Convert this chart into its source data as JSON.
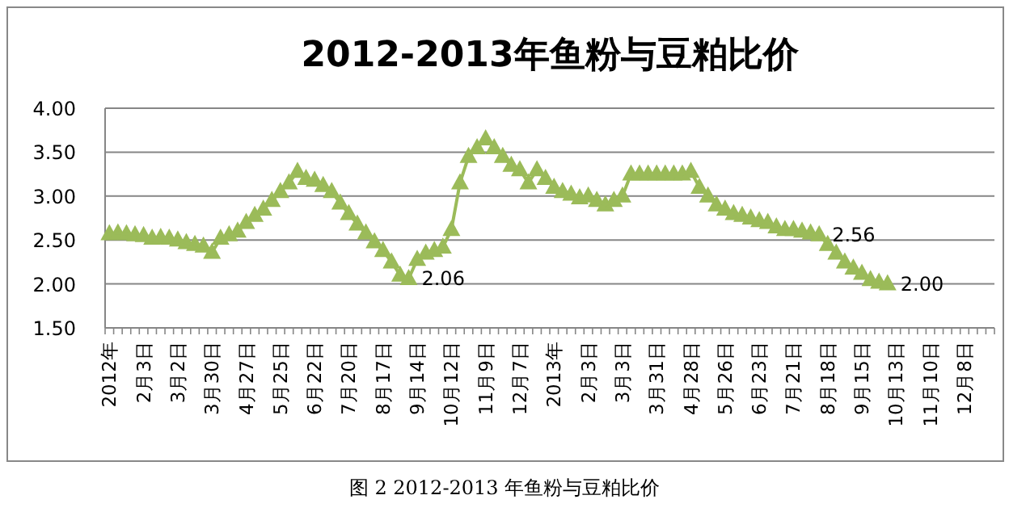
{
  "chart_data": {
    "type": "line",
    "title": "2012-2013年鱼粉与豆粕比价",
    "categories": [
      "2012年",
      null,
      null,
      null,
      "2月3日",
      null,
      null,
      null,
      "3月2日",
      null,
      null,
      null,
      "3月30日",
      null,
      null,
      null,
      "4月27日",
      null,
      null,
      null,
      "5月25日",
      null,
      null,
      null,
      "6月22日",
      null,
      null,
      null,
      "7月20日",
      null,
      null,
      null,
      "8月17日",
      null,
      null,
      null,
      "9月14日",
      null,
      null,
      null,
      "10月12日",
      null,
      null,
      null,
      "11月9日",
      null,
      null,
      null,
      "12月7日",
      null,
      null,
      null,
      "2013年",
      null,
      null,
      null,
      "2月3日",
      null,
      null,
      null,
      "3月3日",
      null,
      null,
      null,
      "3月31日",
      null,
      null,
      null,
      "4月28日",
      null,
      null,
      null,
      "5月26日",
      null,
      null,
      null,
      "6月23日",
      null,
      null,
      null,
      "7月21日",
      null,
      null,
      null,
      "8月18日",
      null,
      null,
      null,
      "9月15日",
      null,
      null,
      null,
      "10月13日",
      null,
      null,
      null,
      "11月10日",
      null,
      null,
      null,
      "12月8日",
      null,
      null,
      null
    ],
    "series": [
      {
        "color": "#9bbb59",
        "values": [
          2.57,
          2.58,
          2.57,
          2.56,
          2.55,
          2.52,
          2.53,
          2.52,
          2.5,
          2.47,
          2.45,
          2.43,
          2.36,
          2.52,
          2.56,
          2.6,
          2.7,
          2.78,
          2.85,
          2.95,
          3.05,
          3.15,
          3.28,
          3.2,
          3.18,
          3.12,
          3.05,
          2.92,
          2.8,
          2.68,
          2.58,
          2.48,
          2.38,
          2.25,
          2.1,
          2.06,
          2.28,
          2.35,
          2.38,
          2.42,
          2.62,
          3.15,
          3.45,
          3.55,
          3.65,
          3.55,
          3.45,
          3.35,
          3.3,
          3.15,
          3.3,
          3.2,
          3.1,
          3.05,
          3.02,
          2.98,
          3.0,
          2.95,
          2.9,
          2.95,
          3.0,
          3.25,
          3.25,
          3.25,
          3.25,
          3.25,
          3.25,
          3.25,
          3.28,
          3.1,
          3.0,
          2.9,
          2.85,
          2.8,
          2.78,
          2.75,
          2.72,
          2.7,
          2.65,
          2.62,
          2.62,
          2.6,
          2.58,
          2.56,
          2.45,
          2.35,
          2.25,
          2.18,
          2.12,
          2.05,
          2.02,
          2.0,
          null,
          null,
          null,
          null,
          null,
          null,
          null,
          null,
          null,
          null,
          null,
          null
        ],
        "value_labels": [
          null,
          null,
          null,
          null,
          null,
          null,
          null,
          null,
          null,
          null,
          null,
          null,
          null,
          null,
          null,
          null,
          null,
          null,
          null,
          null,
          null,
          null,
          null,
          null,
          null,
          null,
          null,
          null,
          null,
          null,
          null,
          null,
          null,
          null,
          null,
          "2.06",
          null,
          null,
          null,
          null,
          null,
          null,
          null,
          null,
          null,
          null,
          null,
          null,
          null,
          null,
          null,
          null,
          null,
          null,
          null,
          null,
          null,
          null,
          null,
          null,
          null,
          null,
          null,
          null,
          null,
          null,
          null,
          null,
          null,
          null,
          null,
          null,
          null,
          null,
          null,
          null,
          null,
          null,
          null,
          null,
          null,
          null,
          null,
          "2.56",
          null,
          null,
          null,
          null,
          null,
          null,
          null,
          "2.00",
          null,
          null,
          null,
          null,
          null,
          null,
          null,
          null,
          null,
          null,
          null,
          null
        ]
      }
    ],
    "ylim": [
      1.5,
      4.0
    ],
    "yticks": [
      {
        "value": 1.5,
        "label": "1.50"
      },
      {
        "value": 2.0,
        "label": "2.00"
      },
      {
        "value": 2.5,
        "label": "2.50"
      },
      {
        "value": 3.0,
        "label": "3.00"
      },
      {
        "value": 3.5,
        "label": "3.50"
      },
      {
        "value": 4.0,
        "label": "4.00"
      }
    ],
    "grid": "y",
    "marker": "triangle",
    "line_style": "solid",
    "annotations": [
      "图 2 2012-2013 年鱼粉与豆粕比价"
    ]
  }
}
